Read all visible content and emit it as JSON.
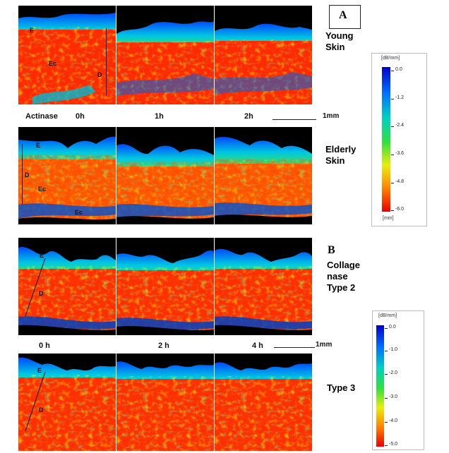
{
  "panel_a": {
    "label": "A",
    "row1_title_lines": [
      "Young",
      "Skin"
    ],
    "row2_title_lines": [
      "Elderly",
      "Skin"
    ],
    "treatment": "Actinase",
    "times": [
      "0h",
      "1h",
      "2h"
    ],
    "scale_label": "1mm",
    "young_tile_labels": [
      "E",
      "Ec",
      "D"
    ],
    "elderly_tile_labels": [
      "E",
      "D",
      "Ec",
      "Ec"
    ],
    "colorbar": {
      "unit_top": "[dB/mm]",
      "unit_bottom": "[mm]",
      "ticks": [
        "0.0",
        "-1.2",
        "-2.4",
        "-3.6",
        "-4.8",
        "-6.0"
      ]
    }
  },
  "panel_b": {
    "label": "B",
    "row1_title_lines": [
      "Collage",
      "nase",
      "Type 2"
    ],
    "row2_title": "Type 3",
    "times": [
      "0 h",
      "2 h",
      "4 h"
    ],
    "scale_label": "1mm",
    "tile_labels": [
      "E",
      "D"
    ],
    "colorbar": {
      "unit_top": "[dB/mm]",
      "ticks": [
        "0.0",
        "-1.0",
        "-2.0",
        "-3.0",
        "-4.0",
        "-5.0"
      ]
    }
  }
}
